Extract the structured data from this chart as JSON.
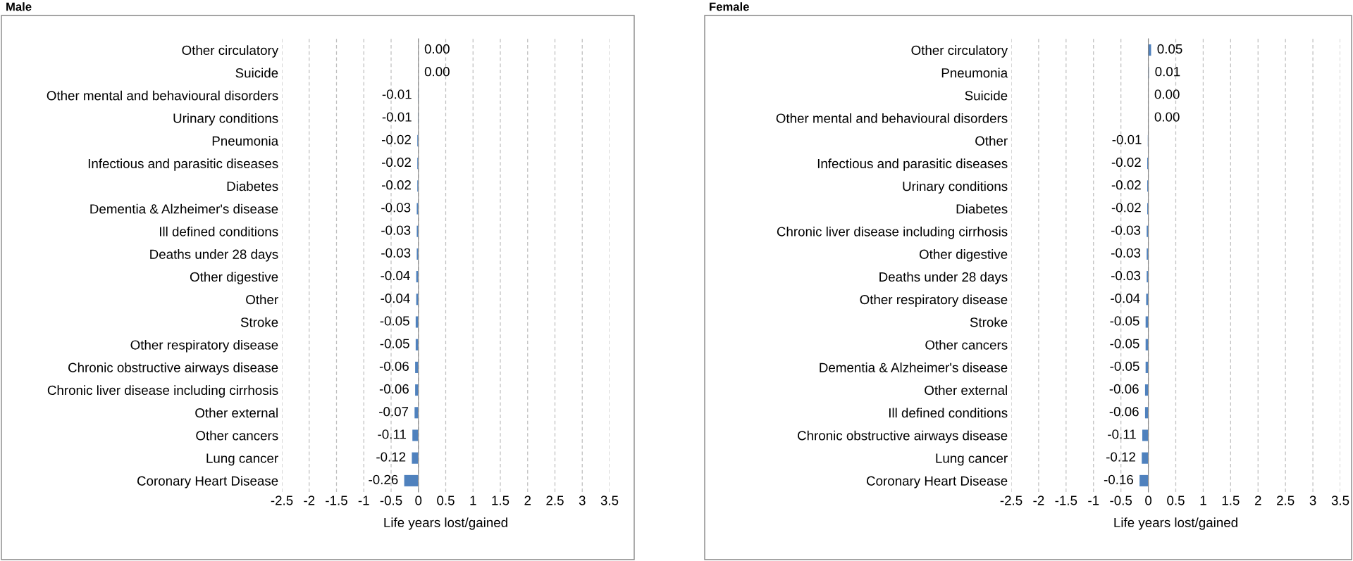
{
  "chart_data": [
    {
      "type": "bar",
      "title": "Male",
      "orientation": "horizontal",
      "xlabel": "Life years lost/gained",
      "color": "#4f81bd",
      "grid": "x",
      "legend": false,
      "categories": [
        "Other circulatory",
        "Suicide",
        "Other mental and behavioural disorders",
        "Urinary conditions",
        "Pneumonia",
        "Infectious and parasitic diseases",
        "Diabetes",
        "Dementia & Alzheimer's disease",
        "Ill defined conditions",
        "Deaths under 28 days",
        "Other digestive",
        "Other",
        "Stroke",
        "Other respiratory disease",
        "Chronic obstructive airways disease",
        "Chronic liver disease including cirrhosis",
        "Other external",
        "Other cancers",
        "Lung cancer",
        "Coronary Heart Disease"
      ],
      "values": [
        0.0,
        0.0,
        -0.01,
        -0.01,
        -0.02,
        -0.02,
        -0.02,
        -0.03,
        -0.03,
        -0.03,
        -0.04,
        -0.04,
        -0.05,
        -0.05,
        -0.06,
        -0.06,
        -0.07,
        -0.11,
        -0.12,
        -0.26
      ],
      "value_labels": [
        "0.00",
        "0.00",
        "-0.01",
        "-0.01",
        "-0.02",
        "-0.02",
        "-0.02",
        "-0.03",
        "-0.03",
        "-0.03",
        "-0.04",
        "-0.04",
        "-0.05",
        "-0.05",
        "-0.06",
        "-0.06",
        "-0.07",
        "-0.11",
        "-0.12",
        "-0.26"
      ],
      "xlim": [
        -2.5,
        3.5
      ],
      "xticks": [
        -2.5,
        -2,
        -1.5,
        -1,
        -0.5,
        0,
        0.5,
        1,
        1.5,
        2,
        2.5,
        3,
        3.5
      ]
    },
    {
      "type": "bar",
      "title": "Female",
      "orientation": "horizontal",
      "xlabel": "Life years lost/gained",
      "color": "#4f81bd",
      "grid": "x",
      "legend": false,
      "categories": [
        "Other circulatory",
        "Pneumonia",
        "Suicide",
        "Other mental and behavioural disorders",
        "Other",
        "Infectious and parasitic diseases",
        "Urinary conditions",
        "Diabetes",
        "Chronic liver disease including cirrhosis",
        "Other digestive",
        "Deaths under 28 days",
        "Other respiratory disease",
        "Stroke",
        "Other cancers",
        "Dementia & Alzheimer's disease",
        "Other external",
        "Ill defined conditions",
        "Chronic obstructive airways disease",
        "Lung cancer",
        "Coronary Heart Disease"
      ],
      "values": [
        0.05,
        0.01,
        0.0,
        0.0,
        -0.01,
        -0.02,
        -0.02,
        -0.02,
        -0.03,
        -0.03,
        -0.03,
        -0.04,
        -0.05,
        -0.05,
        -0.05,
        -0.06,
        -0.06,
        -0.11,
        -0.12,
        -0.16
      ],
      "value_labels": [
        "0.05",
        "0.01",
        "0.00",
        "0.00",
        "-0.01",
        "-0.02",
        "-0.02",
        "-0.02",
        "-0.03",
        "-0.03",
        "-0.03",
        "-0.04",
        "-0.05",
        "-0.05",
        "-0.05",
        "-0.06",
        "-0.06",
        "-0.11",
        "-0.12",
        "-0.16"
      ],
      "xlim": [
        -2.5,
        3.5
      ],
      "xticks": [
        -2.5,
        -2,
        -1.5,
        -1,
        -0.5,
        0,
        0.5,
        1,
        1.5,
        2,
        2.5,
        3,
        3.5
      ]
    }
  ]
}
